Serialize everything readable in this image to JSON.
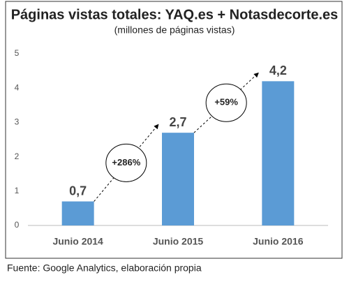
{
  "chart_data": {
    "type": "bar",
    "title": "Páginas vistas totales: YAQ.es + Notasdecorte.es",
    "subtitle": "(millones de páginas vistas)",
    "categories": [
      "Junio 2014",
      "Junio 2015",
      "Junio 2016"
    ],
    "values": [
      0.7,
      2.7,
      4.2
    ],
    "value_labels": [
      "0,7",
      "2,7",
      "4,2"
    ],
    "color": "#5b9bd5",
    "ylim": [
      0,
      5
    ],
    "yticks": [
      0,
      1,
      2,
      3,
      4,
      5
    ],
    "grid": false,
    "annotations": [
      "+286%",
      "+59%"
    ],
    "source": "Fuente: Google Analytics, elaboración propia"
  }
}
